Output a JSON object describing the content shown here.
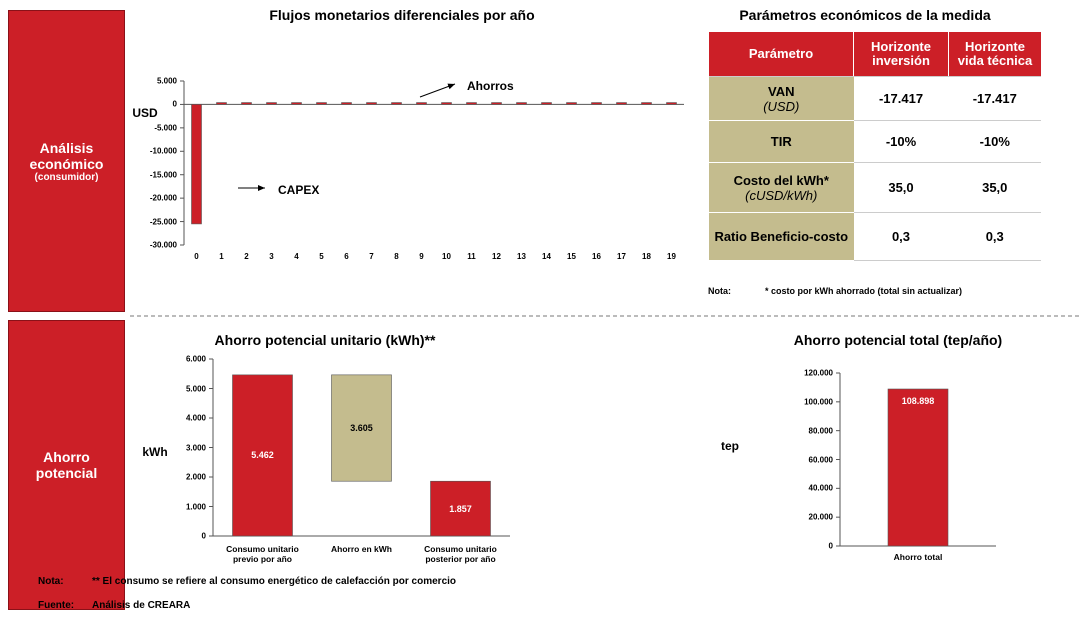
{
  "sidebar": {
    "top": {
      "title": "Análisis económico",
      "subtitle": "(consumidor)"
    },
    "bottom": {
      "title": "Ahorro potencial"
    }
  },
  "chart_data": [
    {
      "type": "bar",
      "title": "Flujos monetarios diferenciales por año",
      "ylabel": "USD",
      "categories": [
        "0",
        "1",
        "2",
        "3",
        "4",
        "5",
        "6",
        "7",
        "8",
        "9",
        "10",
        "11",
        "12",
        "13",
        "14",
        "15",
        "16",
        "17",
        "18",
        "19"
      ],
      "values": [
        -25500,
        400,
        400,
        400,
        400,
        400,
        400,
        400,
        400,
        400,
        400,
        400,
        400,
        400,
        400,
        400,
        400,
        400,
        400,
        400
      ],
      "color": "#cc1f27",
      "ylim": [
        -30000,
        5000
      ],
      "yticks": [
        {
          "value": 5000,
          "label": "5.000"
        },
        0,
        {
          "value": -5000,
          "label": "-5.000"
        },
        {
          "value": -10000,
          "label": "-10.000"
        },
        {
          "value": -15000,
          "label": "-15.000"
        },
        {
          "value": -20000,
          "label": "-20.000"
        },
        {
          "value": -25000,
          "label": "-25.000"
        },
        {
          "value": -30000,
          "label": "-30.000"
        }
      ],
      "annotations": [
        "Ahorros",
        "CAPEX"
      ]
    },
    {
      "type": "waterfall",
      "title": "Ahorro potencial unitario (kWh)**",
      "ylabel": "kWh",
      "categories": [
        "Consumo unitario previo por año",
        "Ahorro en kWh",
        "Consumo unitario posterior por año"
      ],
      "values": [
        5462,
        3605,
        1857
      ],
      "value_labels": [
        "5.462",
        "3.605",
        "1.857"
      ],
      "measure": [
        "absolute",
        "decrease",
        "total"
      ],
      "colors": [
        "#cc1f27",
        "#c4bc8e",
        "#cc1f27"
      ],
      "ylim": [
        0,
        6000
      ],
      "yticks": [
        0,
        {
          "value": 1000,
          "label": "1.000"
        },
        {
          "value": 2000,
          "label": "2.000"
        },
        {
          "value": 3000,
          "label": "3.000"
        },
        {
          "value": 4000,
          "label": "4.000"
        },
        {
          "value": 5000,
          "label": "5.000"
        },
        {
          "value": 6000,
          "label": "6.000"
        }
      ]
    },
    {
      "type": "bar",
      "title": "Ahorro potencial total (tep/año)",
      "ylabel": "tep",
      "categories": [
        "Ahorro total"
      ],
      "values": [
        108898
      ],
      "value_labels": [
        "108.898"
      ],
      "color": "#cc1f27",
      "ylim": [
        0,
        120000
      ],
      "yticks": [
        0,
        {
          "value": 20000,
          "label": "20.000"
        },
        {
          "value": 40000,
          "label": "40.000"
        },
        {
          "value": 60000,
          "label": "60.000"
        },
        {
          "value": 80000,
          "label": "80.000"
        },
        {
          "value": 100000,
          "label": "100.000"
        },
        {
          "value": 120000,
          "label": "120.000"
        }
      ]
    }
  ],
  "table": {
    "title": "Parámetros económicos de la medida",
    "header": [
      "Parámetro",
      "Horizonte inversión",
      "Horizonte vida técnica"
    ],
    "rows": [
      {
        "name": "VAN",
        "unit": "(USD)",
        "values": [
          "-17.417",
          "-17.417"
        ]
      },
      {
        "name": "TIR",
        "values": [
          "-10%",
          "-10%"
        ]
      },
      {
        "name": "Costo del kWh*",
        "unit": "(cUSD/kWh)",
        "values": [
          "35,0",
          "35,0"
        ]
      },
      {
        "name": "Ratio Beneficio-costo",
        "values": [
          "0,3",
          "0,3"
        ]
      }
    ],
    "note_label": "Nota:",
    "note": "* costo por kWh ahorrado (total sin actualizar)"
  },
  "notes": {
    "note_label": "Nota:",
    "note": "** El consumo se refiere al consumo energético de calefacción por comercio",
    "source_label": "Fuente:",
    "source": "Análisis de CREARA"
  }
}
